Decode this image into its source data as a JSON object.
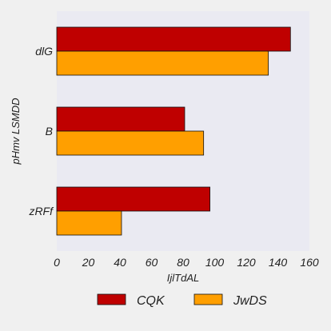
{
  "chart_data": {
    "type": "bar",
    "orientation": "horizontal",
    "categories": [
      "dlG",
      "B",
      "zRFf"
    ],
    "series": [
      {
        "name": "CQK",
        "values": [
          148,
          81,
          97
        ],
        "color": "#bf0000"
      },
      {
        "name": "JwDS",
        "values": [
          134,
          93,
          41
        ],
        "color": "#ff9f00"
      }
    ],
    "xlabel": "IjlTdAL",
    "ylabel": "pHmv LSMDD",
    "xlim": [
      0,
      160
    ],
    "xticks": [
      0,
      20,
      40,
      60,
      80,
      100,
      120,
      140,
      160
    ],
    "grid": false,
    "legend_position": "bottom",
    "colors": {
      "plot_background": "#eaeaf2",
      "figure_background": "#f0f0f0",
      "bar_edge": "#111111"
    }
  }
}
